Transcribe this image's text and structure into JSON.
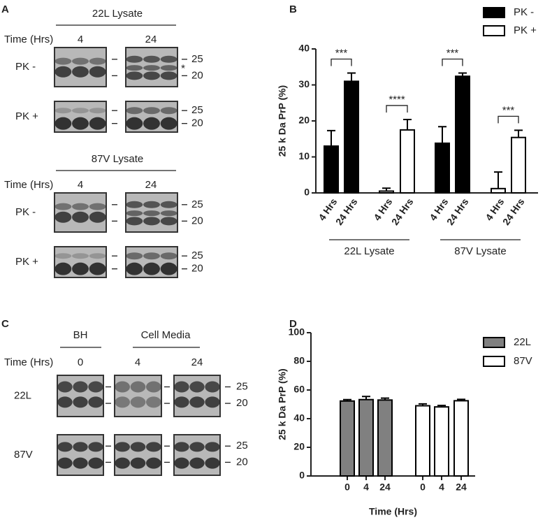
{
  "panel_labels": [
    "A",
    "B",
    "C",
    "D"
  ],
  "blots_a": {
    "groups": [
      {
        "title": "22L Lysate",
        "time_label": "Time (Hrs)",
        "times": [
          "4",
          "24"
        ],
        "rows": [
          "PK -",
          "PK +"
        ]
      },
      {
        "title": "87V Lysate",
        "time_label": "Time (Hrs)",
        "times": [
          "4",
          "24"
        ],
        "rows": [
          "PK -",
          "PK +"
        ]
      }
    ],
    "markers": [
      "25",
      "20"
    ],
    "star": "*"
  },
  "blots_c": {
    "headers": [
      "BH",
      "Cell Media"
    ],
    "time_label": "Time (Hrs)",
    "times": [
      "0",
      "4",
      "24"
    ],
    "rows": [
      "22L",
      "87V"
    ],
    "markers": [
      "25",
      "20"
    ]
  },
  "chart_data": [
    {
      "type": "bar",
      "ylabel": "25 k Da PrP (%)",
      "ylim": [
        0,
        40
      ],
      "yticks": [
        0,
        10,
        20,
        30,
        40
      ],
      "grid": false,
      "categories": [
        "4 Hrs",
        "24 Hrs",
        "4 Hrs",
        "24 Hrs",
        "4 Hrs",
        "24 Hrs",
        "4 Hrs",
        "24 Hrs"
      ],
      "groups": [
        "22L Lysate",
        "87V Lysate"
      ],
      "series": [
        {
          "name": "PK -",
          "color": "#000000",
          "values": [
            13,
            31,
            null,
            null,
            13.8,
            32.4,
            null,
            null
          ],
          "errors": [
            4.3,
            2.3,
            null,
            null,
            4.6,
            0.9,
            null,
            null
          ]
        },
        {
          "name": "PK +",
          "color": "#ffffff",
          "values": [
            null,
            null,
            0.5,
            17.5,
            null,
            null,
            1.2,
            15.4
          ],
          "errors": [
            null,
            null,
            0.8,
            2.9,
            null,
            null,
            4.6,
            2.0
          ]
        }
      ],
      "significance": [
        "***",
        "****",
        "***",
        "***"
      ],
      "legend": "top-right"
    },
    {
      "type": "bar",
      "ylabel": "25 k Da PrP (%)",
      "xlabel": "Time (Hrs)",
      "ylim": [
        0,
        100
      ],
      "yticks": [
        0,
        20,
        40,
        60,
        80,
        100
      ],
      "grid": false,
      "categories": [
        "0",
        "4",
        "24",
        "0",
        "4",
        "24"
      ],
      "series": [
        {
          "name": "22L",
          "color": "#808080",
          "values": [
            52.3,
            53.3,
            53,
            null,
            null,
            null
          ],
          "errors": [
            1,
            2.2,
            1.3,
            null,
            null,
            null
          ]
        },
        {
          "name": "87V",
          "color": "#ffffff",
          "values": [
            null,
            null,
            null,
            49,
            48.2,
            52.5
          ],
          "errors": [
            null,
            null,
            null,
            1.3,
            1,
            1
          ]
        }
      ],
      "legend": "top-right"
    }
  ]
}
